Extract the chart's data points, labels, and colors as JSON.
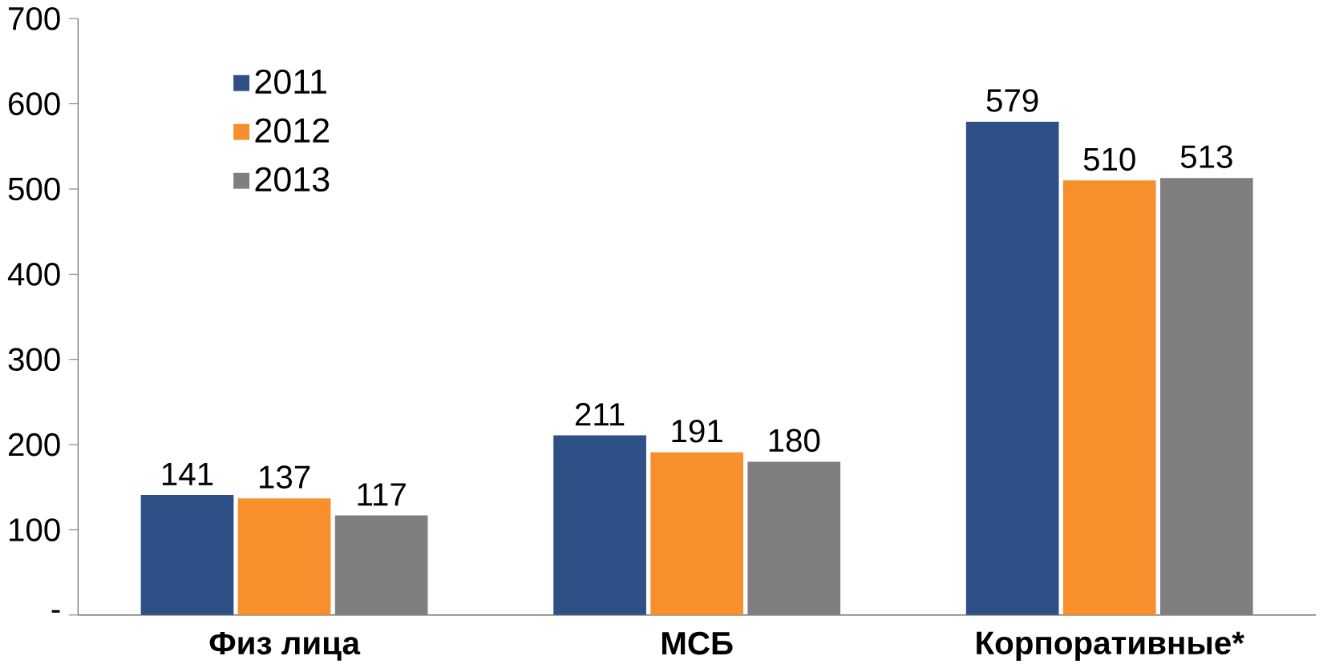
{
  "chart_data": {
    "type": "bar",
    "categories": [
      "Физ лица",
      "МСБ",
      "Корпоративные*"
    ],
    "series": [
      {
        "name": "2011",
        "color": "#2e5087",
        "values": [
          141,
          211,
          579
        ]
      },
      {
        "name": "2012",
        "color": "#f7902c",
        "values": [
          137,
          191,
          510
        ]
      },
      {
        "name": "2013",
        "color": "#7f7f7f",
        "values": [
          117,
          180,
          513
        ]
      }
    ],
    "ylim": [
      0,
      700
    ],
    "yticks": [
      {
        "value": 0,
        "label": "-"
      },
      100,
      200,
      300,
      400,
      500,
      600,
      700
    ],
    "data_labels": true,
    "legend": "top left",
    "grid": false
  }
}
